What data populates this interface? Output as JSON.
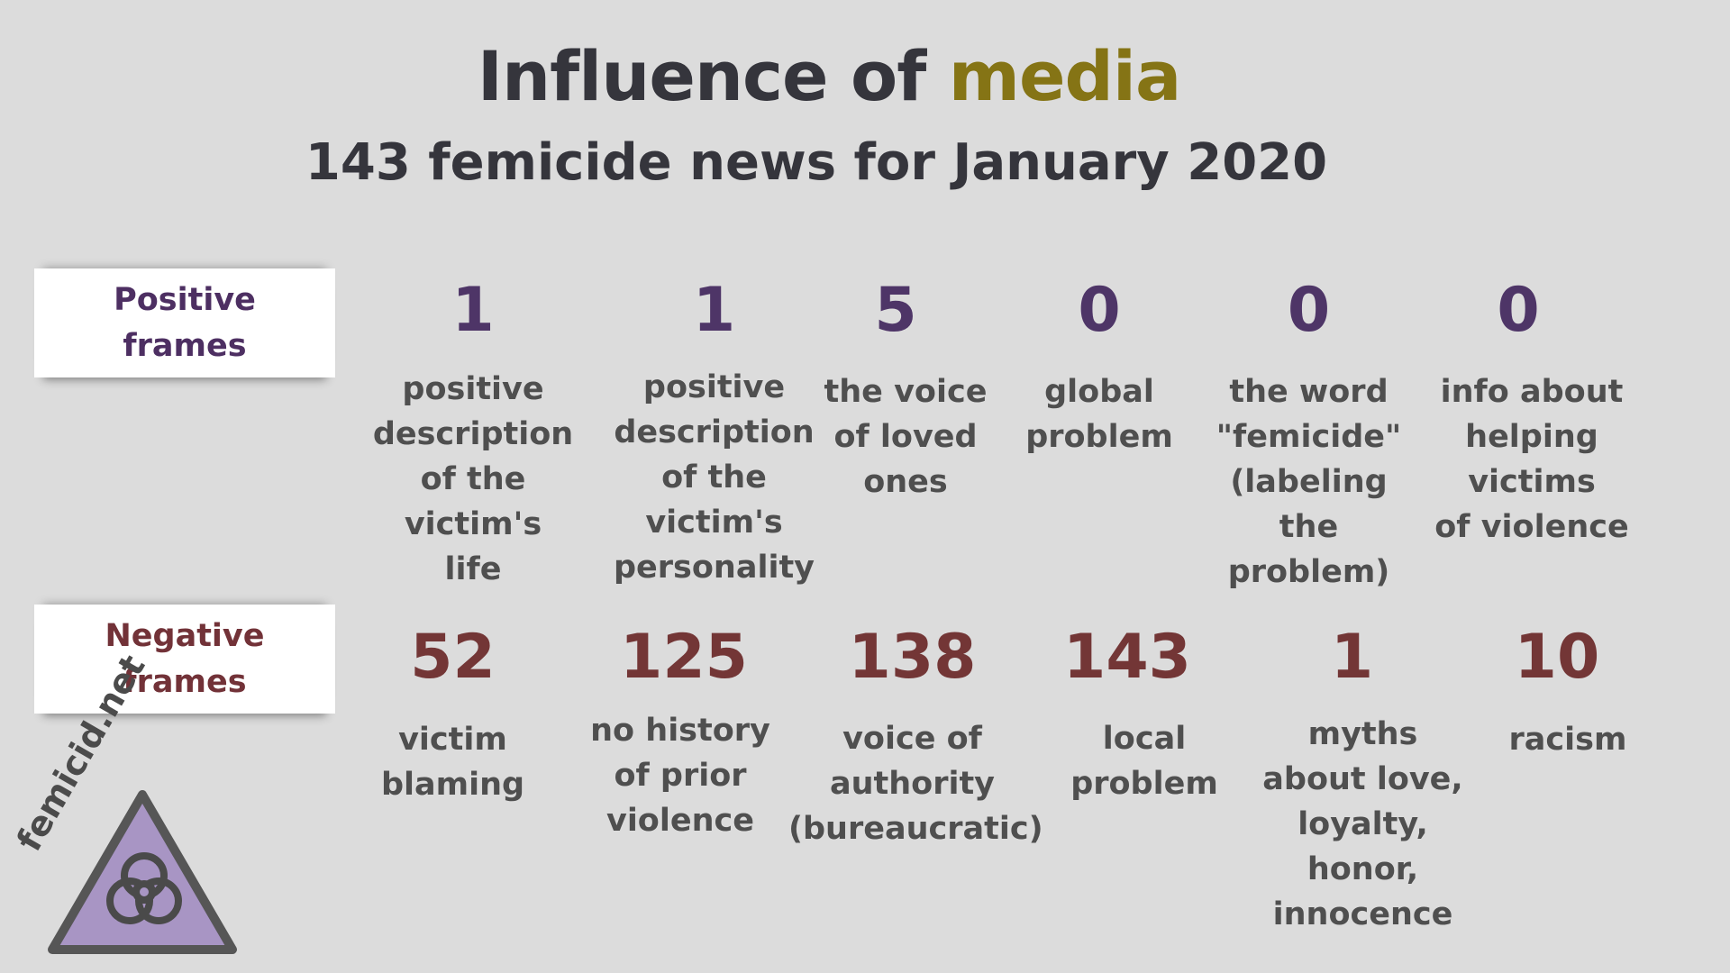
{
  "header": {
    "title_main": "Influence of ",
    "title_accent": "media",
    "subtitle": "143 femicide news for January 2020"
  },
  "positive": {
    "label": "Positive frames",
    "stats": [
      {
        "value": "1",
        "label": "positive\ndescription\nof the victim's\nlife"
      },
      {
        "value": "1",
        "label": "positive\ndescription\nof the victim's\npersonality"
      },
      {
        "value": "5",
        "label": "the voice\nof loved\nones"
      },
      {
        "value": "0",
        "label": "global\nproblem"
      },
      {
        "value": "0",
        "label": "the word\n\"femicide\"\n(labeling\nthe problem)"
      },
      {
        "value": "0",
        "label": "info about\nhelping victims\nof violence"
      }
    ]
  },
  "negative": {
    "label": "Negative frames",
    "stats": [
      {
        "value": "52",
        "label": "victim\nblaming"
      },
      {
        "value": "125",
        "label": "no history\nof prior\nviolence"
      },
      {
        "value": "138",
        "label": "voice of\nauthority\n(bureaucratic)"
      },
      {
        "value": "143",
        "label": "local\nproblem"
      },
      {
        "value": "1",
        "label": "myths\nabout love,\nloyalty,\nhonor,\ninnocence"
      },
      {
        "value": "10",
        "label": "racism"
      }
    ]
  },
  "logo": {
    "text": "femicid.net",
    "icon": "biohazard-icon"
  },
  "colors": {
    "background": "#dcdcdc",
    "accent": "#857415",
    "positive": "#4e3567",
    "negative": "#733636",
    "logo_fill": "#a895c4"
  }
}
